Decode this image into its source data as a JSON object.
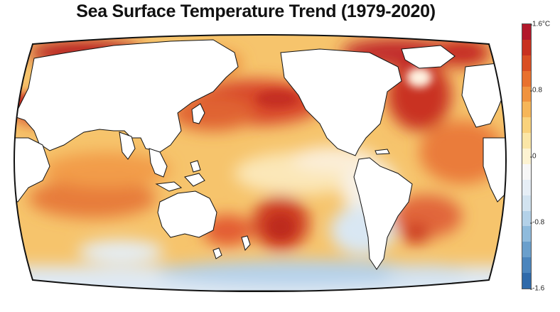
{
  "title": "Sea Surface Temperature Trend (1979-2020)",
  "colorbar": {
    "unit": "°C",
    "max_label": "1.6°C",
    "ticks": [
      "1.6°C",
      "0.8",
      "0",
      "-0.8",
      "-1.6"
    ],
    "tick_values": [
      1.6,
      0.8,
      0,
      -0.8,
      -1.6
    ],
    "range": [
      -1.6,
      1.6
    ],
    "colors": [
      "#b2182b",
      "#c8311f",
      "#d94f23",
      "#e8712e",
      "#f0933f",
      "#f6b659",
      "#f9d27c",
      "#fbe6a6",
      "#fdf3d2",
      "#f7f7f7",
      "#e6eef6",
      "#d2e3f0",
      "#b3d1e8",
      "#8fbbdc",
      "#6a9fcc",
      "#4b85bd",
      "#2f6aaa"
    ]
  },
  "map": {
    "projection": "Robinson",
    "ocean_color": "#f5c870",
    "land_color": "#ffffff",
    "coastline_color": "#111111"
  }
}
